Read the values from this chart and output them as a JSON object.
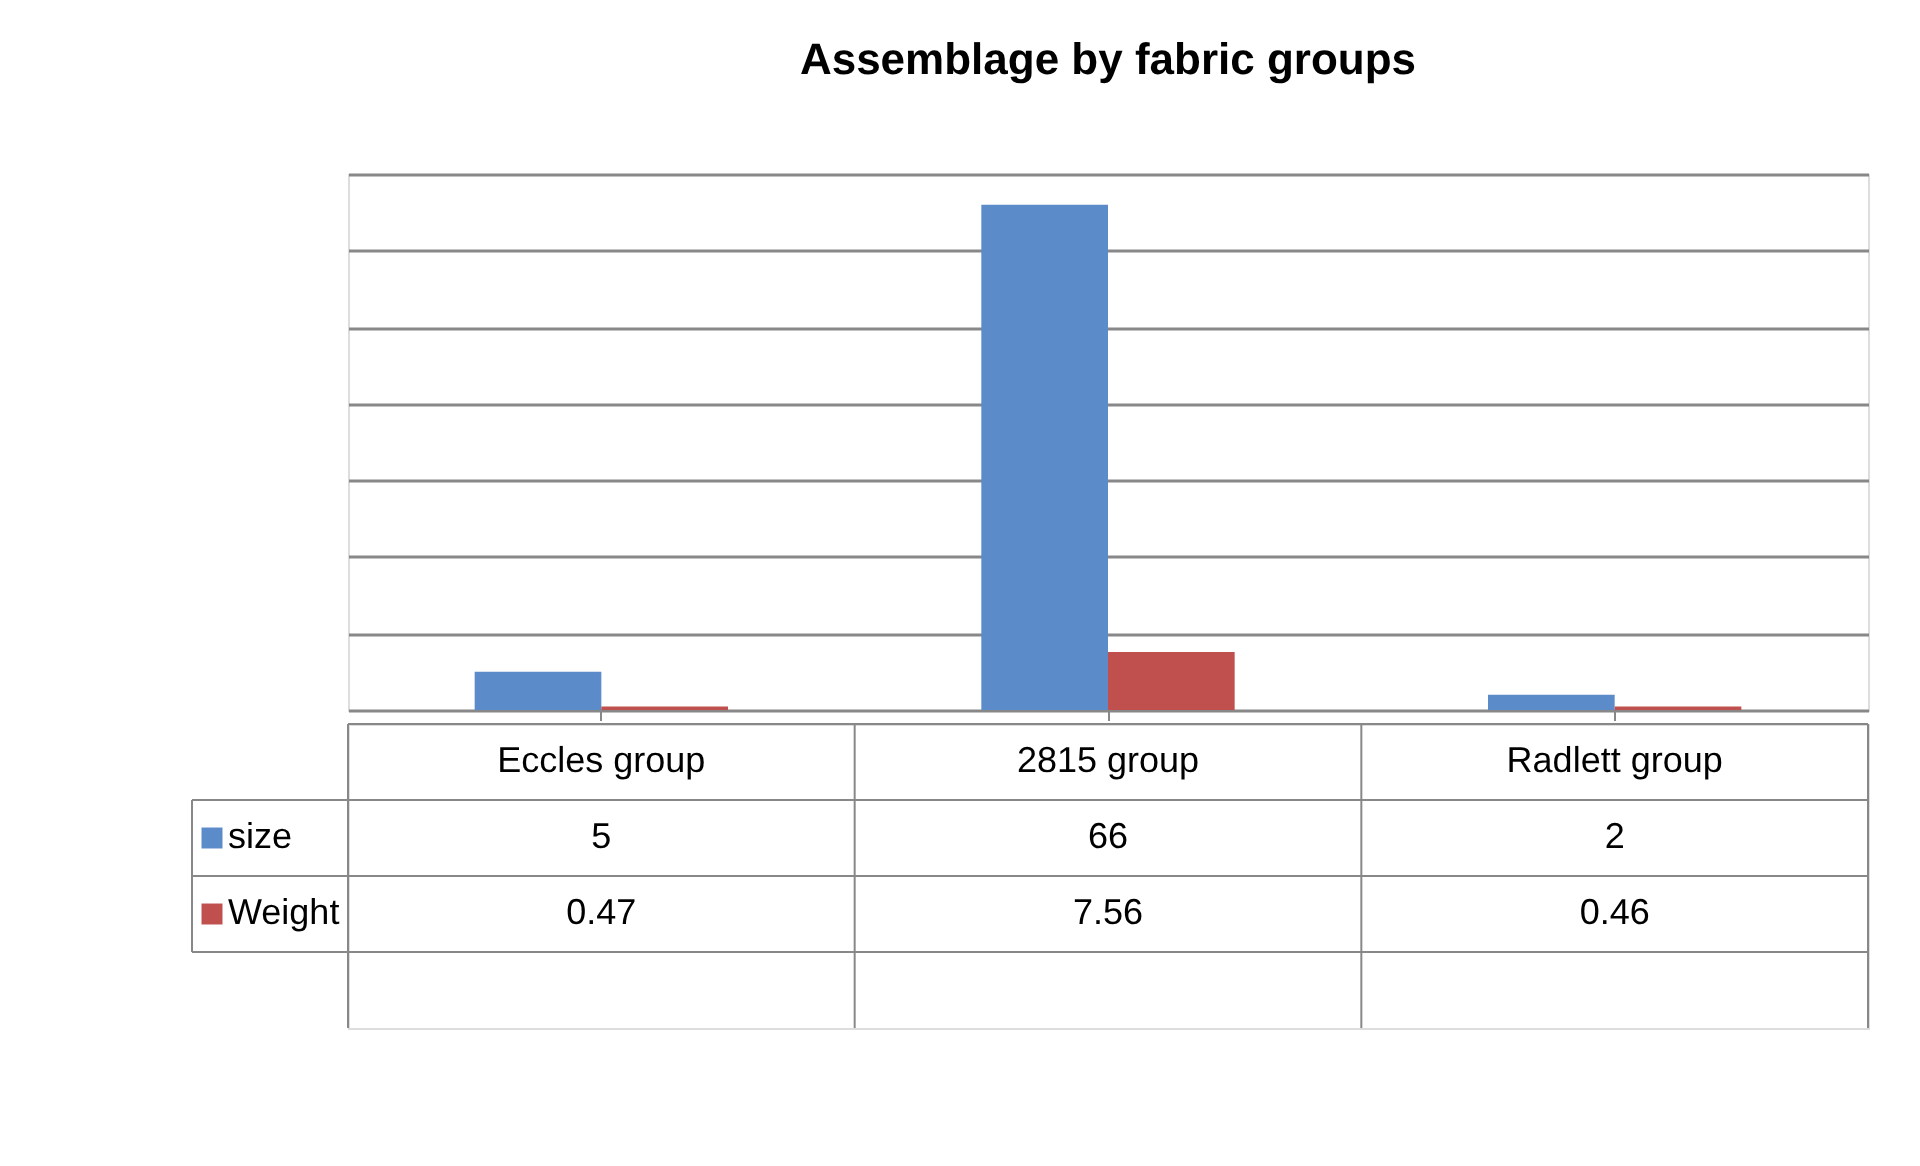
{
  "chart_data": {
    "type": "bar",
    "title": "Assemblage by fabric groups",
    "categories": [
      "Eccles group",
      "2815 group",
      "Radlett group"
    ],
    "series": [
      {
        "name": "size",
        "color": "#5b8bc9",
        "values": [
          5,
          66,
          2
        ]
      },
      {
        "name": "Weight",
        "color": "#c0504d",
        "values": [
          0.47,
          7.56,
          0.46
        ]
      }
    ],
    "ylim": [
      0,
      70
    ],
    "yticks": [
      {
        "value": 0,
        "label": null
      },
      {
        "value": 10,
        "label": null
      },
      {
        "value": 20,
        "label": null
      },
      {
        "value": 30,
        "label": null
      },
      {
        "value": 40,
        "label": null
      },
      {
        "value": 50,
        "label": null
      },
      {
        "value": 60,
        "label": null
      },
      {
        "value": 70,
        "label": null
      }
    ],
    "grid": "y",
    "tick_labels": "x",
    "data_labels": true,
    "legend": "bottom left"
  }
}
